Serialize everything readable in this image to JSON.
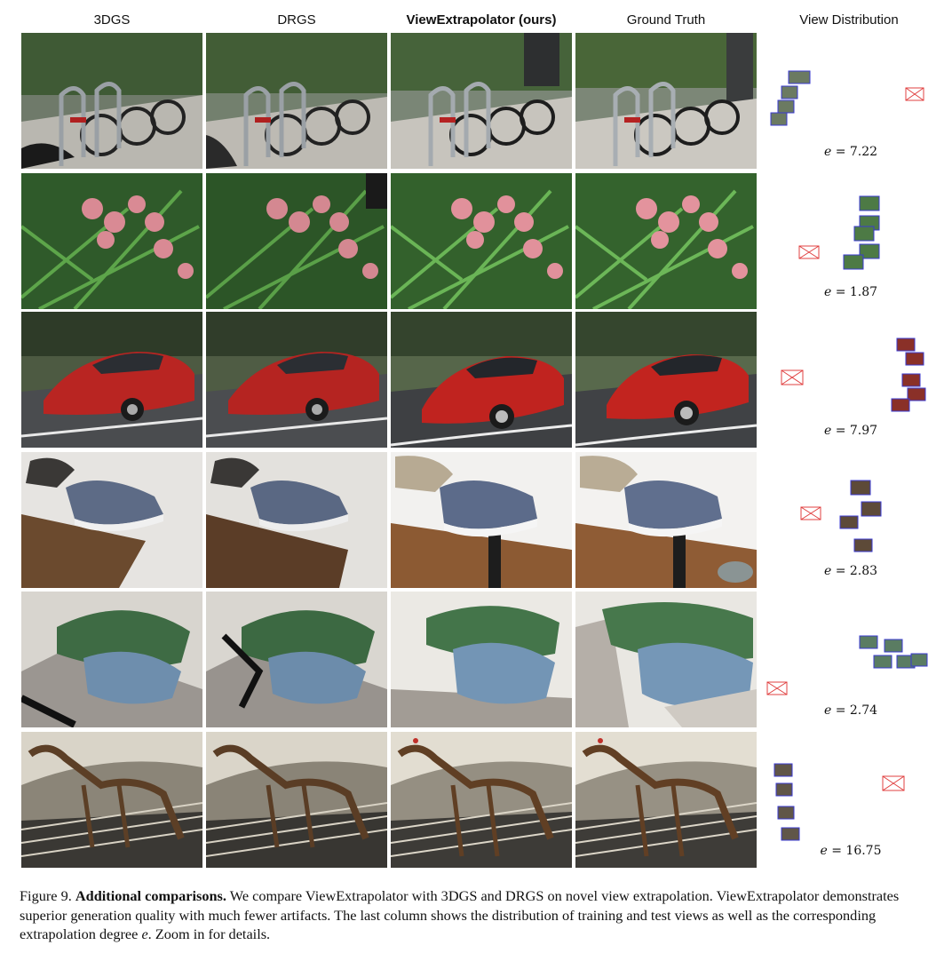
{
  "headers": {
    "col1": "3DGS",
    "col2": "DRGS",
    "col3": "ViewExtrapolator (ours)",
    "col4": "Ground Truth",
    "col5": "View Distribution"
  },
  "rows": [
    {
      "scene": "bicycles",
      "e_label": "e",
      "e_value": "= 7.22"
    },
    {
      "scene": "orchids",
      "e_label": "e",
      "e_value": "= 1.87"
    },
    {
      "scene": "red car",
      "e_label": "e",
      "e_value": "= 7.97"
    },
    {
      "scene": "shoes",
      "e_label": "e",
      "e_value": "= 2.83"
    },
    {
      "scene": "agave plants",
      "e_label": "e",
      "e_value": "= 2.74"
    },
    {
      "scene": "t-rex skeleton",
      "e_label": "e",
      "e_value": "= 16.75"
    }
  ],
  "caption": {
    "prefix": "Figure 9.",
    "bold": "Additional comparisons.",
    "text": "We compare ViewExtrapolator with 3DGS and DRGS on novel view extrapolation. ViewExtrapolator demonstrates superior generation quality with much fewer artifacts. The last column shows the distribution of training and test views as well as the corresponding extrapolation degree",
    "e_symbol": "e",
    "suffix": ". Zoom in for details."
  },
  "colors": {
    "train_camera": "#3a3ad0",
    "test_camera": "#e04040"
  }
}
